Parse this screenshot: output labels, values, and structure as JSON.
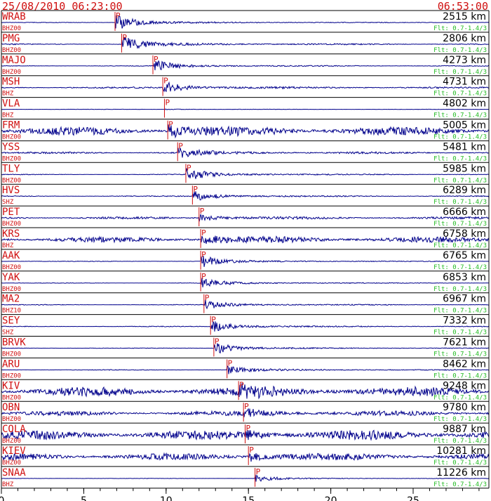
{
  "header": {
    "start_time": "25/08/2010 06:23:00",
    "end_time": "06:53:00"
  },
  "colors": {
    "trace": "#00008b",
    "label": "#d01010",
    "filter": "#22bb22",
    "frame": "#000000"
  },
  "chart_data": {
    "type": "line",
    "title": "",
    "xlabel": "",
    "ylabel": "",
    "xlim": [
      0,
      29.6
    ],
    "xticks": [
      0,
      5,
      10,
      15,
      20,
      25
    ],
    "grid": false,
    "traces": [
      {
        "station": "WRAB",
        "channel": "BHZ00",
        "distance": "2515 km",
        "filter": "Flt: 0.7-1.4/3",
        "p_arrival": 6.9,
        "noise": 0.03,
        "event_amp": 0.9
      },
      {
        "station": "PMG",
        "channel": "BHZ00",
        "distance": "2806 km",
        "filter": "Flt: 0.7-1.4/3",
        "p_arrival": 7.3,
        "noise": 0.06,
        "event_amp": 0.9
      },
      {
        "station": "MAJO",
        "channel": "BHZ00",
        "distance": "4273 km",
        "filter": "Flt: 0.7-1.4/3",
        "p_arrival": 9.2,
        "noise": 0.04,
        "event_amp": 0.7
      },
      {
        "station": "MSH",
        "channel": "BHZ",
        "distance": "4731 km",
        "filter": "Flt: 0.7-1.4/3",
        "p_arrival": 9.8,
        "noise": 0.08,
        "event_amp": 0.7
      },
      {
        "station": "VLA",
        "channel": "BHZ",
        "distance": "4802 km",
        "filter": "Flt: 0.7-1.4/3",
        "p_arrival": 9.9,
        "noise": 0.02,
        "event_amp": 0.05
      },
      {
        "station": "FRM",
        "channel": "BHZ00",
        "distance": "5005 km",
        "filter": "Flt: 0.7-1.4/3",
        "p_arrival": 10.1,
        "noise": 0.45,
        "event_amp": 0.8
      },
      {
        "station": "YSS",
        "channel": "BHZ00",
        "distance": "5481 km",
        "filter": "Flt: 0.7-1.4/3",
        "p_arrival": 10.7,
        "noise": 0.1,
        "event_amp": 0.6
      },
      {
        "station": "TLY",
        "channel": "BHZ00",
        "distance": "5985 km",
        "filter": "Flt: 0.7-1.4/3",
        "p_arrival": 11.2,
        "noise": 0.04,
        "event_amp": 0.8
      },
      {
        "station": "HVS",
        "channel": "SHZ",
        "distance": "6289 km",
        "filter": "Flt: 0.7-1.4/3",
        "p_arrival": 11.6,
        "noise": 0.05,
        "event_amp": 0.6
      },
      {
        "station": "PET",
        "channel": "BHZ00",
        "distance": "6666 km",
        "filter": "Flt: 0.7-1.4/3",
        "p_arrival": 12.0,
        "noise": 0.12,
        "event_amp": 0.4
      },
      {
        "station": "KRS",
        "channel": "BHZ",
        "distance": "6758 km",
        "filter": "Flt: 0.7-1.4/3",
        "p_arrival": 12.1,
        "noise": 0.3,
        "event_amp": 0.6
      },
      {
        "station": "AAK",
        "channel": "BHZ00",
        "distance": "6765 km",
        "filter": "Flt: 0.7-1.4/3",
        "p_arrival": 12.1,
        "noise": 0.03,
        "event_amp": 0.7
      },
      {
        "station": "YAK",
        "channel": "BHZ00",
        "distance": "6853 km",
        "filter": "Flt: 0.7-1.4/3",
        "p_arrival": 12.1,
        "noise": 0.03,
        "event_amp": 0.6
      },
      {
        "station": "MA2",
        "channel": "BHZ10",
        "distance": "6967 km",
        "filter": "Flt: 0.7-1.4/3",
        "p_arrival": 12.3,
        "noise": 0.04,
        "event_amp": 0.6
      },
      {
        "station": "SEY",
        "channel": "SHZ",
        "distance": "7332 km",
        "filter": "Flt: 0.7-1.4/3",
        "p_arrival": 12.7,
        "noise": 0.04,
        "event_amp": 0.7
      },
      {
        "station": "BRVK",
        "channel": "BHZ00",
        "distance": "7621 km",
        "filter": "Flt: 0.7-1.4/3",
        "p_arrival": 12.9,
        "noise": 0.03,
        "event_amp": 0.7
      },
      {
        "station": "ARU",
        "channel": "BHZ00",
        "distance": "8462 km",
        "filter": "Flt: 0.7-1.4/3",
        "p_arrival": 13.7,
        "noise": 0.04,
        "event_amp": 0.6
      },
      {
        "station": "KIV",
        "channel": "BHZ00",
        "distance": "9248 km",
        "filter": "Flt: 0.7-1.4/3",
        "p_arrival": 14.4,
        "noise": 0.5,
        "event_amp": 0.6
      },
      {
        "station": "OBN",
        "channel": "BHZ00",
        "distance": "9780 km",
        "filter": "Flt: 0.7-1.4/3",
        "p_arrival": 14.7,
        "noise": 0.25,
        "event_amp": 0.5
      },
      {
        "station": "COLA",
        "channel": "BHZ00",
        "distance": "9887 km",
        "filter": "Flt: 0.7-1.4/3",
        "p_arrival": 14.8,
        "noise": 0.5,
        "event_amp": 0.5
      },
      {
        "station": "KIEV",
        "channel": "BHZ00",
        "distance": "10281 km",
        "filter": "Flt: 0.7-1.4/3",
        "p_arrival": 15.0,
        "noise": 0.35,
        "event_amp": 0.5
      },
      {
        "station": "SNAA",
        "channel": "BHZ",
        "distance": "11226 km",
        "filter": "Flt: 0.7-1.4/3",
        "p_arrival": 15.4,
        "noise": 0.02,
        "event_amp": 0.4
      }
    ]
  }
}
